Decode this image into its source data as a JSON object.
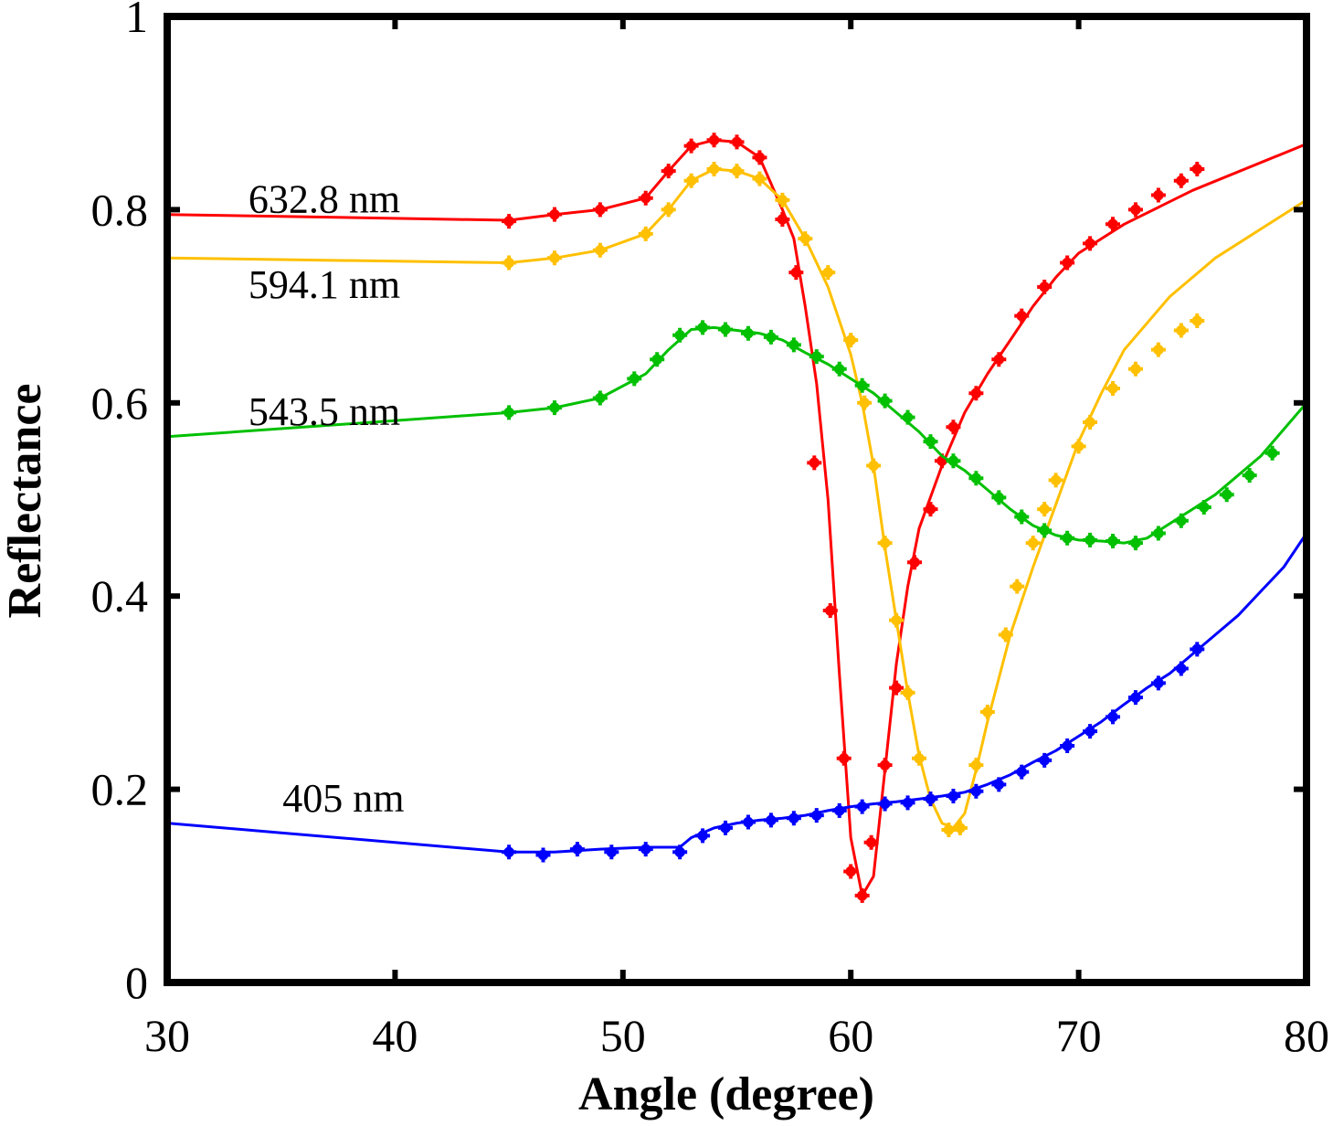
{
  "chart_data": {
    "type": "line",
    "xlabel": "Angle (degree)",
    "ylabel": "Reflectance",
    "xlim": [
      30,
      80
    ],
    "ylim": [
      0,
      1
    ],
    "xticks": [
      30,
      40,
      50,
      60,
      70,
      80
    ],
    "yticks": [
      0,
      0.2,
      0.4,
      0.6,
      0.8,
      1
    ],
    "xtick_labels": [
      "30",
      "40",
      "50",
      "60",
      "70",
      "80"
    ],
    "ytick_labels": [
      "0",
      "0.2",
      "0.4",
      "0.6",
      "0.8",
      "1"
    ],
    "grid": false,
    "series": [
      {
        "name": "632.8 nm",
        "color": "#ff0000",
        "fit": [
          [
            30,
            0.795
          ],
          [
            45,
            0.789
          ],
          [
            47,
            0.795
          ],
          [
            49,
            0.8
          ],
          [
            51,
            0.812
          ],
          [
            52,
            0.84
          ],
          [
            53,
            0.866
          ],
          [
            54,
            0.872
          ],
          [
            55,
            0.87
          ],
          [
            56,
            0.854
          ],
          [
            57,
            0.8
          ],
          [
            57.5,
            0.77
          ],
          [
            58,
            0.7
          ],
          [
            58.5,
            0.62
          ],
          [
            59,
            0.5
          ],
          [
            59.5,
            0.32
          ],
          [
            60,
            0.15
          ],
          [
            60.5,
            0.09
          ],
          [
            61,
            0.11
          ],
          [
            61.5,
            0.22
          ],
          [
            62,
            0.33
          ],
          [
            62.5,
            0.41
          ],
          [
            63,
            0.47
          ],
          [
            64,
            0.535
          ],
          [
            65,
            0.59
          ],
          [
            66,
            0.63
          ],
          [
            67,
            0.665
          ],
          [
            68,
            0.7
          ],
          [
            69,
            0.73
          ],
          [
            70,
            0.755
          ],
          [
            72,
            0.785
          ],
          [
            75,
            0.82
          ],
          [
            80,
            0.868
          ]
        ],
        "markers": [
          [
            45,
            0.788
          ],
          [
            47,
            0.795
          ],
          [
            49,
            0.8
          ],
          [
            51,
            0.812
          ],
          [
            52,
            0.84
          ],
          [
            53,
            0.866
          ],
          [
            54,
            0.872
          ],
          [
            55,
            0.87
          ],
          [
            56,
            0.854
          ],
          [
            57,
            0.79
          ],
          [
            57.6,
            0.735
          ],
          [
            58.4,
            0.538
          ],
          [
            59.1,
            0.385
          ],
          [
            59.7,
            0.232
          ],
          [
            60,
            0.115
          ],
          [
            60.5,
            0.09
          ],
          [
            60.9,
            0.145
          ],
          [
            61.5,
            0.225
          ],
          [
            62,
            0.305
          ],
          [
            62.8,
            0.435
          ],
          [
            63.5,
            0.49
          ],
          [
            64,
            0.54
          ],
          [
            64.5,
            0.575
          ],
          [
            65.5,
            0.61
          ],
          [
            66.5,
            0.645
          ],
          [
            67.5,
            0.69
          ],
          [
            68.5,
            0.72
          ],
          [
            69.5,
            0.745
          ],
          [
            70.5,
            0.765
          ],
          [
            71.5,
            0.785
          ],
          [
            72.5,
            0.8
          ],
          [
            73.5,
            0.815
          ],
          [
            74.5,
            0.83
          ],
          [
            75.2,
            0.842
          ]
        ]
      },
      {
        "name": "594.1 nm",
        "color": "#ffc000",
        "fit": [
          [
            30,
            0.75
          ],
          [
            45,
            0.745
          ],
          [
            47,
            0.75
          ],
          [
            49,
            0.758
          ],
          [
            51,
            0.775
          ],
          [
            52,
            0.8
          ],
          [
            53,
            0.83
          ],
          [
            54,
            0.842
          ],
          [
            55,
            0.84
          ],
          [
            56,
            0.832
          ],
          [
            57,
            0.81
          ],
          [
            58,
            0.77
          ],
          [
            59,
            0.72
          ],
          [
            60,
            0.65
          ],
          [
            60.5,
            0.6
          ],
          [
            61,
            0.535
          ],
          [
            61.5,
            0.45
          ],
          [
            62,
            0.375
          ],
          [
            62.5,
            0.3
          ],
          [
            63,
            0.235
          ],
          [
            63.5,
            0.19
          ],
          [
            64,
            0.165
          ],
          [
            64.5,
            0.16
          ],
          [
            65,
            0.175
          ],
          [
            65.5,
            0.22
          ],
          [
            66,
            0.27
          ],
          [
            67,
            0.36
          ],
          [
            68,
            0.43
          ],
          [
            69,
            0.495
          ],
          [
            70,
            0.56
          ],
          [
            71,
            0.61
          ],
          [
            72,
            0.655
          ],
          [
            74,
            0.71
          ],
          [
            76,
            0.75
          ],
          [
            78,
            0.78
          ],
          [
            80,
            0.81
          ]
        ],
        "markers": [
          [
            45,
            0.745
          ],
          [
            47,
            0.75
          ],
          [
            49,
            0.758
          ],
          [
            51,
            0.775
          ],
          [
            52,
            0.8
          ],
          [
            53,
            0.83
          ],
          [
            54,
            0.842
          ],
          [
            55,
            0.84
          ],
          [
            56,
            0.832
          ],
          [
            57,
            0.81
          ],
          [
            58,
            0.77
          ],
          [
            59,
            0.735
          ],
          [
            60,
            0.665
          ],
          [
            60.6,
            0.6
          ],
          [
            61,
            0.535
          ],
          [
            61.5,
            0.455
          ],
          [
            62,
            0.375
          ],
          [
            62.5,
            0.3
          ],
          [
            63,
            0.232
          ],
          [
            63.5,
            0.19
          ],
          [
            64.3,
            0.158
          ],
          [
            64.8,
            0.16
          ],
          [
            65.5,
            0.225
          ],
          [
            66,
            0.28
          ],
          [
            66.8,
            0.36
          ],
          [
            67.3,
            0.41
          ],
          [
            68,
            0.455
          ],
          [
            68.5,
            0.49
          ],
          [
            69,
            0.52
          ],
          [
            70,
            0.555
          ],
          [
            70.5,
            0.58
          ],
          [
            71.5,
            0.615
          ],
          [
            72.5,
            0.635
          ],
          [
            73.5,
            0.655
          ],
          [
            74.5,
            0.675
          ],
          [
            75.2,
            0.685
          ]
        ]
      },
      {
        "name": "543.5 nm",
        "color": "#00c000",
        "fit": [
          [
            30,
            0.565
          ],
          [
            45,
            0.59
          ],
          [
            47,
            0.595
          ],
          [
            49,
            0.605
          ],
          [
            51,
            0.63
          ],
          [
            52,
            0.655
          ],
          [
            53,
            0.676
          ],
          [
            54,
            0.678
          ],
          [
            55,
            0.675
          ],
          [
            56,
            0.672
          ],
          [
            57,
            0.665
          ],
          [
            58,
            0.652
          ],
          [
            59,
            0.64
          ],
          [
            60,
            0.625
          ],
          [
            61,
            0.61
          ],
          [
            62,
            0.59
          ],
          [
            63,
            0.57
          ],
          [
            64,
            0.545
          ],
          [
            65,
            0.53
          ],
          [
            66,
            0.51
          ],
          [
            67,
            0.49
          ],
          [
            68,
            0.473
          ],
          [
            69,
            0.463
          ],
          [
            70,
            0.458
          ],
          [
            71,
            0.457
          ],
          [
            72,
            0.455
          ],
          [
            73,
            0.46
          ],
          [
            74,
            0.475
          ],
          [
            75,
            0.49
          ],
          [
            76,
            0.505
          ],
          [
            78,
            0.545
          ],
          [
            80,
            0.6
          ]
        ],
        "markers": [
          [
            45,
            0.59
          ],
          [
            47,
            0.595
          ],
          [
            49,
            0.605
          ],
          [
            50.5,
            0.625
          ],
          [
            51.5,
            0.645
          ],
          [
            52.5,
            0.67
          ],
          [
            53.5,
            0.678
          ],
          [
            54.5,
            0.676
          ],
          [
            55.5,
            0.672
          ],
          [
            56.5,
            0.668
          ],
          [
            57.5,
            0.66
          ],
          [
            58.5,
            0.648
          ],
          [
            59.5,
            0.635
          ],
          [
            60.5,
            0.618
          ],
          [
            61.5,
            0.602
          ],
          [
            62.5,
            0.585
          ],
          [
            63.5,
            0.56
          ],
          [
            64.5,
            0.54
          ],
          [
            65.5,
            0.522
          ],
          [
            66.5,
            0.502
          ],
          [
            67.5,
            0.482
          ],
          [
            68.5,
            0.468
          ],
          [
            69.5,
            0.46
          ],
          [
            70.5,
            0.458
          ],
          [
            71.5,
            0.457
          ],
          [
            72.5,
            0.455
          ],
          [
            73.5,
            0.465
          ],
          [
            74.5,
            0.478
          ],
          [
            75.5,
            0.492
          ],
          [
            76.5,
            0.505
          ],
          [
            77.5,
            0.525
          ],
          [
            78.5,
            0.548
          ]
        ]
      },
      {
        "name": "405 nm",
        "color": "#0000ff",
        "fit": [
          [
            30,
            0.165
          ],
          [
            35,
            0.155
          ],
          [
            40,
            0.145
          ],
          [
            45,
            0.135
          ],
          [
            47,
            0.135
          ],
          [
            49,
            0.138
          ],
          [
            51,
            0.14
          ],
          [
            52.5,
            0.14
          ],
          [
            53,
            0.15
          ],
          [
            54,
            0.16
          ],
          [
            55,
            0.165
          ],
          [
            56,
            0.168
          ],
          [
            57,
            0.17
          ],
          [
            58,
            0.173
          ],
          [
            59,
            0.178
          ],
          [
            60,
            0.182
          ],
          [
            61,
            0.185
          ],
          [
            62,
            0.187
          ],
          [
            63,
            0.19
          ],
          [
            64,
            0.193
          ],
          [
            65,
            0.197
          ],
          [
            66,
            0.205
          ],
          [
            67,
            0.215
          ],
          [
            68,
            0.228
          ],
          [
            69,
            0.24
          ],
          [
            70,
            0.255
          ],
          [
            71,
            0.27
          ],
          [
            72,
            0.288
          ],
          [
            73,
            0.305
          ],
          [
            74,
            0.32
          ],
          [
            75,
            0.34
          ],
          [
            76,
            0.36
          ],
          [
            77,
            0.38
          ],
          [
            78,
            0.405
          ],
          [
            79,
            0.43
          ],
          [
            80,
            0.465
          ]
        ],
        "markers": [
          [
            45,
            0.135
          ],
          [
            46.5,
            0.132
          ],
          [
            48,
            0.138
          ],
          [
            49.5,
            0.135
          ],
          [
            51,
            0.138
          ],
          [
            52.5,
            0.135
          ],
          [
            53.5,
            0.152
          ],
          [
            54.5,
            0.16
          ],
          [
            55.5,
            0.166
          ],
          [
            56.5,
            0.168
          ],
          [
            57.5,
            0.17
          ],
          [
            58.5,
            0.173
          ],
          [
            59.5,
            0.178
          ],
          [
            60.5,
            0.182
          ],
          [
            61.5,
            0.185
          ],
          [
            62.5,
            0.186
          ],
          [
            63.5,
            0.19
          ],
          [
            64.5,
            0.193
          ],
          [
            65.5,
            0.198
          ],
          [
            66.5,
            0.205
          ],
          [
            67.5,
            0.218
          ],
          [
            68.5,
            0.23
          ],
          [
            69.5,
            0.245
          ],
          [
            70.5,
            0.26
          ],
          [
            71.5,
            0.275
          ],
          [
            72.5,
            0.295
          ],
          [
            73.5,
            0.31
          ],
          [
            74.5,
            0.325
          ],
          [
            75.2,
            0.345
          ]
        ]
      }
    ]
  }
}
